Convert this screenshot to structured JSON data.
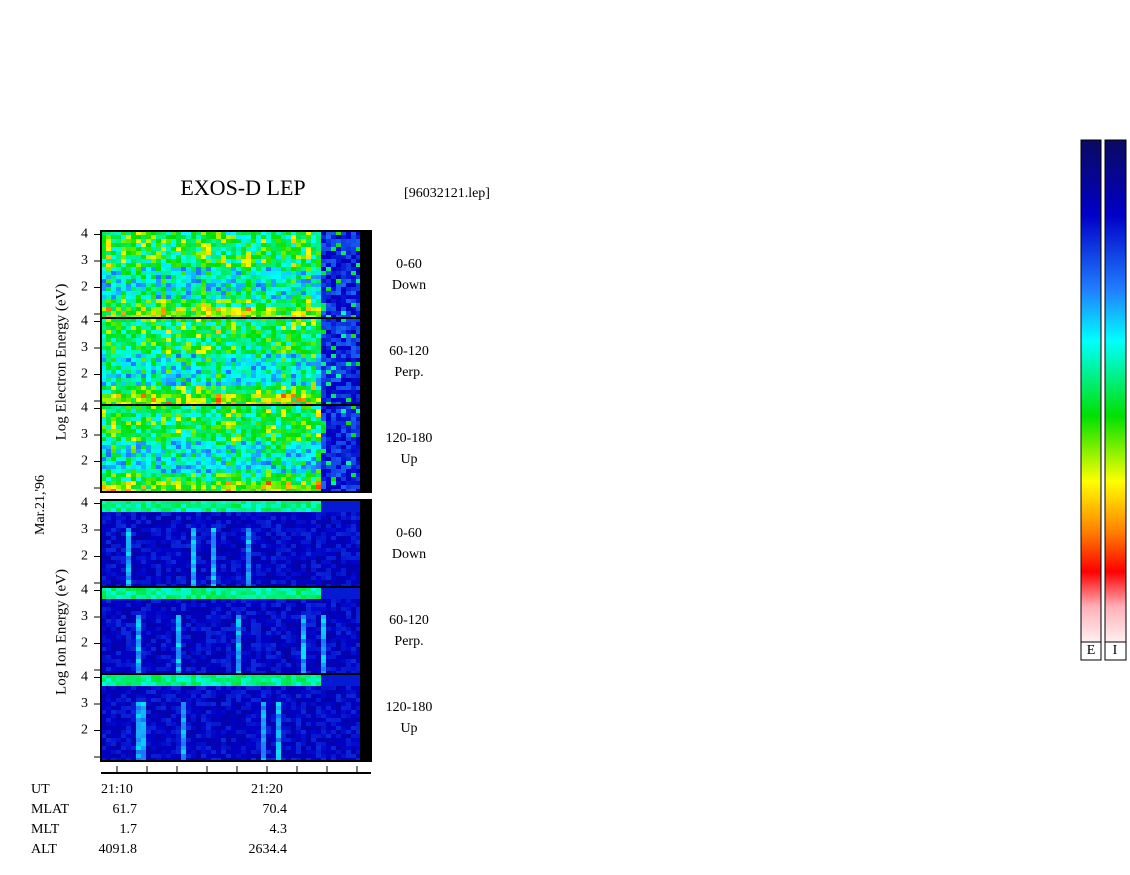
{
  "header": {
    "title": "EXOS-D LEP",
    "file": "[96032121.lep]"
  },
  "date": "Mar.21,'96",
  "electron_axis_label": "Log  Electron  Energy (eV)",
  "ion_axis_label": "Log  Ion  Energy  (eV)",
  "panels": [
    {
      "species": "electron",
      "pitch": "0-60",
      "direction": "Down",
      "yticks": [
        "2",
        "3",
        "4"
      ]
    },
    {
      "species": "electron",
      "pitch": "60-120",
      "direction": "Perp.",
      "yticks": [
        "2",
        "3",
        "4"
      ]
    },
    {
      "species": "electron",
      "pitch": "120-180",
      "direction": "Up",
      "yticks": [
        "2",
        "3",
        "4"
      ]
    },
    {
      "species": "ion",
      "pitch": "0-60",
      "direction": "Down",
      "yticks": [
        "2",
        "3",
        "4"
      ]
    },
    {
      "species": "ion",
      "pitch": "60-120",
      "direction": "Perp.",
      "yticks": [
        "2",
        "3",
        "4"
      ]
    },
    {
      "species": "ion",
      "pitch": "120-180",
      "direction": "Up",
      "yticks": [
        "2",
        "3",
        "4"
      ]
    }
  ],
  "ephemeris": {
    "rows": [
      [
        "UT",
        "21:10",
        "21:20"
      ],
      [
        "MLAT",
        "61.7",
        "70.4"
      ],
      [
        "MLT",
        "1.7",
        "4.3"
      ],
      [
        "ALT",
        "4091.8",
        "2634.4"
      ]
    ]
  },
  "colorbars": [
    "E",
    "I"
  ]
}
